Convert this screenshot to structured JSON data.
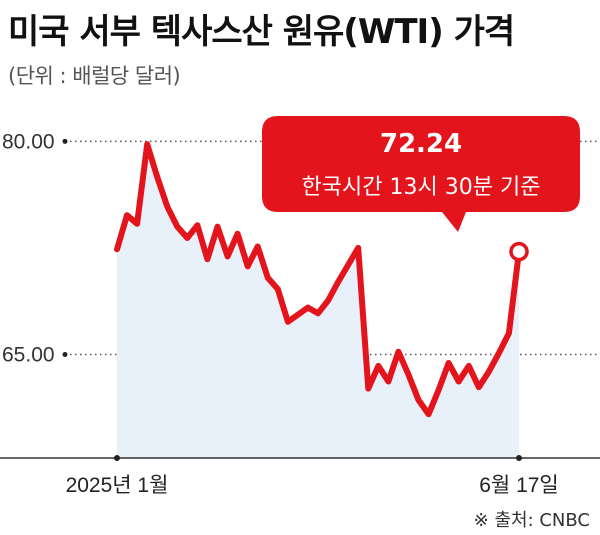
{
  "title": "미국 서부 텍사스산 원유(WTI) 가격",
  "unit_note": "(단위 : 배럴당 달러)",
  "source": "※ 출처: CNBC",
  "colors": {
    "line": "#e3141b",
    "area": "#e8f0fa",
    "callout": "#e3141b",
    "grid": "#555555"
  },
  "chart_data": {
    "type": "line",
    "title": "미국 서부 텍사스산 원유(WTI) 가격",
    "xlabel": "",
    "ylabel": "",
    "ylim": [
      58.0,
      81.5
    ],
    "yticks": [
      {
        "value": 80.0,
        "label": "80.00"
      },
      {
        "value": 65.0,
        "label": "65.00"
      }
    ],
    "xticks": [
      {
        "label": "2025년 1월"
      },
      {
        "label": "6월 17일"
      }
    ],
    "grid": "dotted horizontal at ticks",
    "series": [
      {
        "name": "",
        "values": [
          72.4,
          74.8,
          74.2,
          79.8,
          77.5,
          75.4,
          74.0,
          73.2,
          74.1,
          71.7,
          74.0,
          71.9,
          73.5,
          71.2,
          72.6,
          70.4,
          69.6,
          67.3,
          67.8,
          68.3,
          67.9,
          68.8,
          70.1,
          71.3,
          72.5,
          62.6,
          64.2,
          63.1,
          65.2,
          63.6,
          61.8,
          60.8,
          62.5,
          64.4,
          63.1,
          64.2,
          62.7,
          63.8,
          65.1,
          66.5,
          72.24
        ]
      }
    ],
    "callout": {
      "value_label": "72.24",
      "note": "한국시간 13시 30분 기준"
    }
  }
}
